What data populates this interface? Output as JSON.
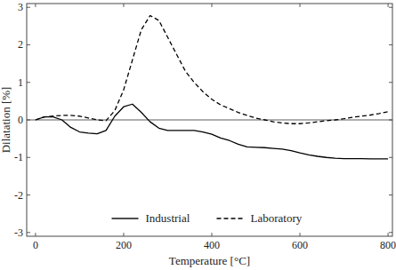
{
  "chart_data": {
    "type": "line",
    "x_label": "Temperature [°C]",
    "y_label": "Dilatation [%]",
    "x": [
      0,
      20,
      40,
      60,
      80,
      100,
      120,
      140,
      160,
      180,
      200,
      220,
      240,
      260,
      280,
      300,
      320,
      340,
      360,
      380,
      400,
      420,
      440,
      460,
      480,
      500,
      520,
      540,
      560,
      580,
      600,
      620,
      640,
      660,
      680,
      700,
      720,
      740,
      760,
      780,
      800
    ],
    "series": [
      {
        "name": "Industrial",
        "color": "#000000",
        "line_style": "solid",
        "values": [
          0,
          0.08,
          0.08,
          0.0,
          -0.2,
          -0.32,
          -0.35,
          -0.37,
          -0.28,
          0.1,
          0.35,
          0.42,
          0.2,
          -0.05,
          -0.22,
          -0.28,
          -0.28,
          -0.28,
          -0.28,
          -0.32,
          -0.38,
          -0.48,
          -0.55,
          -0.65,
          -0.72,
          -0.73,
          -0.74,
          -0.76,
          -0.78,
          -0.82,
          -0.88,
          -0.93,
          -0.97,
          -1.0,
          -1.02,
          -1.03,
          -1.03,
          -1.03,
          -1.04,
          -1.04,
          -1.04
        ]
      },
      {
        "name": "Laboratory",
        "color": "#000000",
        "line_style": "dashed",
        "values": [
          0,
          0.08,
          0.1,
          0.12,
          0.12,
          0.1,
          0.05,
          0.0,
          -0.02,
          0.25,
          0.8,
          1.6,
          2.4,
          2.78,
          2.65,
          2.2,
          1.75,
          1.3,
          1.0,
          0.75,
          0.55,
          0.4,
          0.3,
          0.2,
          0.12,
          0.05,
          0.0,
          -0.05,
          -0.08,
          -0.1,
          -0.1,
          -0.08,
          -0.05,
          -0.02,
          0.0,
          0.03,
          0.07,
          0.1,
          0.13,
          0.17,
          0.22
        ]
      }
    ],
    "xlim": [
      -20,
      810
    ],
    "ylim": [
      -3.1,
      3.1
    ],
    "xticks": [
      0,
      200,
      400,
      600,
      800
    ],
    "yticks": [
      -3,
      -2,
      -1,
      0,
      1,
      2,
      3
    ],
    "grid": false,
    "legend": "bottom"
  }
}
